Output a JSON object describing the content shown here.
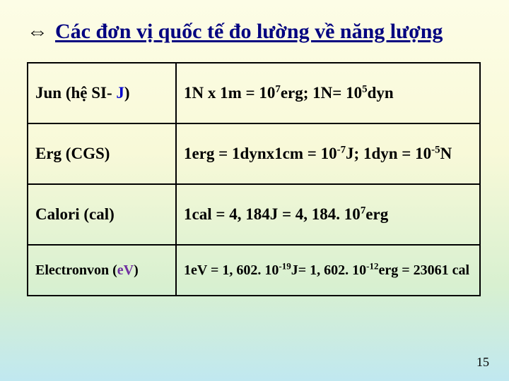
{
  "title": "Các đơn vị quốc tế đo lường về năng lượng",
  "arrow_glyph": "⇔",
  "page_number": "15",
  "rows": [
    {
      "left_pre": "Jun (hệ SI- ",
      "left_hl": "J",
      "left_post": ")",
      "right_a": "1N x 1m = 10",
      "right_a_sup": "7",
      "right_b": "erg; 1N= 10",
      "right_b_sup": "5",
      "right_c": "dyn"
    },
    {
      "left_pre": "Erg (CGS)",
      "right_a": "1erg = 1dynx1cm = 10",
      "right_a_sup": "-7",
      "right_b": "J; 1dyn = 10",
      "right_b_sup": "-5",
      "right_c": "N"
    },
    {
      "left_pre": "Calori (cal)",
      "right_a": "1cal = 4, 184J = 4, 184. 10",
      "right_a_sup": "7",
      "right_b": "erg"
    },
    {
      "left_pre": "Electronvon (",
      "left_hl": "eV",
      "left_post": ")",
      "right_a": "1eV = 1, 602. 10",
      "right_a_sup": "-19",
      "right_b": "J= 1, 602. 10",
      "right_b_sup": "-12",
      "right_c": "erg = 23061 cal"
    }
  ]
}
